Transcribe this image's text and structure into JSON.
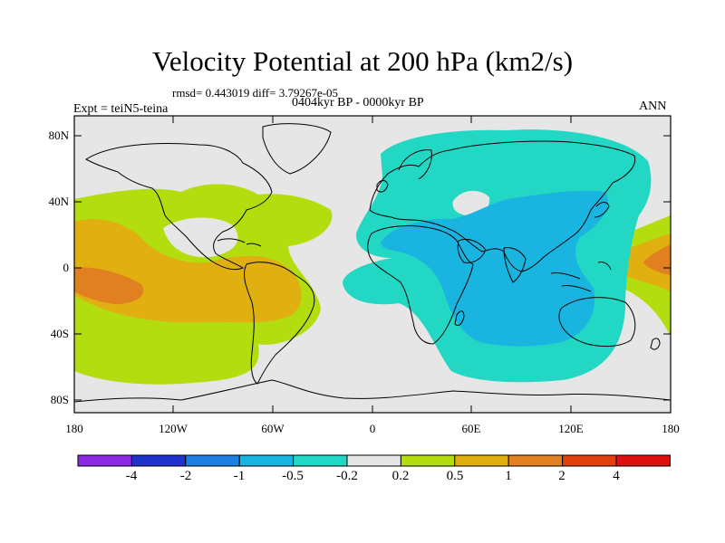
{
  "title": "Velocity Potential at 200 hPa (km2/s)",
  "stats_line": "rmsd= 0.443019 diff= 3.79267e-05",
  "period": "0404kyr BP - 0000kyr BP",
  "experiment": "Expt = teiN5-teina",
  "season": "ANN",
  "lat_labels": [
    "80N",
    "40N",
    "0",
    "40S",
    "80S"
  ],
  "lon_labels": [
    "180",
    "120W",
    "60W",
    "0",
    "60E",
    "120E",
    "180"
  ],
  "colorbar": {
    "labels": [
      "-4",
      "-2",
      "-1",
      "-0.5",
      "-0.2",
      "0.2",
      "0.5",
      "1",
      "2",
      "4"
    ],
    "colors": [
      "#8a2be2",
      "#2233cc",
      "#1e7fe0",
      "#19b4e0",
      "#22d8c4",
      "#e6e6e6",
      "#b4dd10",
      "#e0b010",
      "#e08020",
      "#e04010",
      "#e01010"
    ]
  },
  "colors": {
    "background": "#e6e6e6",
    "neg_02": "#22d8c4",
    "neg_05": "#19b4e0",
    "pos_02": "#b4dd10",
    "pos_05": "#e0b010",
    "pos_1": "#e08020"
  }
}
